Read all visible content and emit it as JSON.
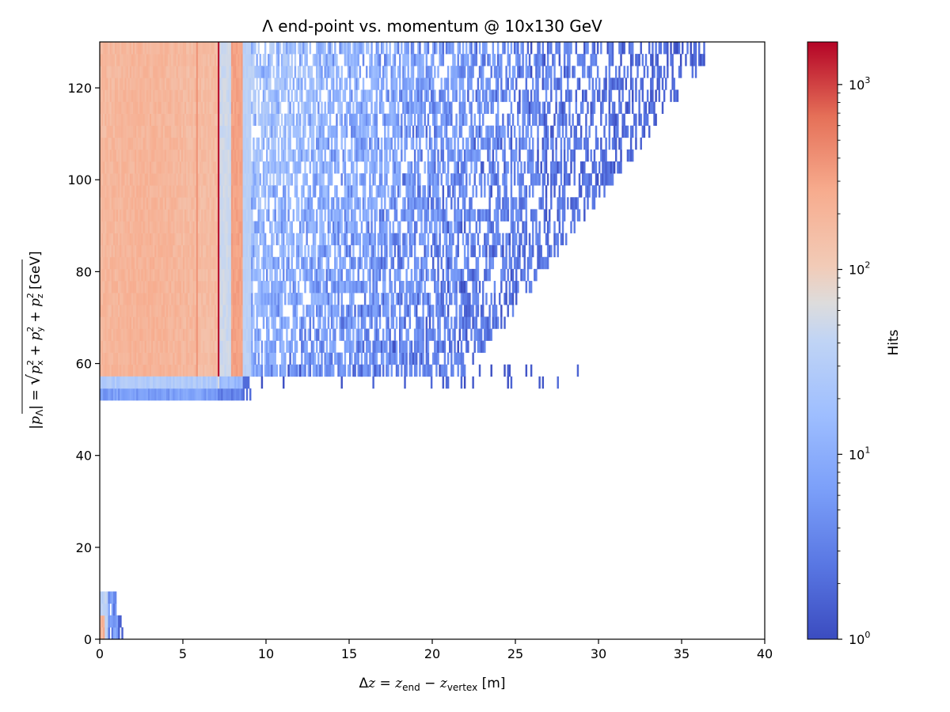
{
  "chart_data": {
    "type": "heatmap",
    "title": "Λ end-point vs. momentum @ 10x130 GeV",
    "xlabel": {
      "prefix": "Δ",
      "var": "z",
      "eq": " = ",
      "z": "z",
      "sub_end": "end",
      "minus": " − ",
      "sub_vertex": "vertex",
      "unit": " [m]"
    },
    "ylabel": {
      "open": "|",
      "p": "p",
      "sub_lambda": "Λ",
      "close": "| = ",
      "px": "p",
      "sub_x": "x",
      "py": "p",
      "sub_y": "y",
      "pz": "p",
      "sub_z": "z",
      "sup2": "2",
      "plus": " + ",
      "unit": " [GeV]"
    },
    "xlim": [
      0,
      40
    ],
    "ylim": [
      0,
      130
    ],
    "x_ticks": [
      0,
      5,
      10,
      15,
      20,
      25,
      30,
      35,
      40
    ],
    "y_ticks": [
      0,
      20,
      40,
      60,
      80,
      100,
      120
    ],
    "colorbar": {
      "label": "Hits",
      "scale": "log",
      "range": [
        1,
        1700
      ],
      "ticks": [
        {
          "base": "10",
          "exp": "0"
        },
        {
          "base": "10",
          "exp": "1"
        },
        {
          "base": "10",
          "exp": "2"
        },
        {
          "base": "10",
          "exp": "3"
        }
      ],
      "colormap": "coolwarm"
    },
    "features": {
      "main_band_momentum": [
        52,
        130
      ],
      "dense_region_z": [
        0,
        8.5
      ],
      "sparse_extent_z": 37,
      "peak_line_z": 7.0,
      "secondary_line_z": 5.8,
      "detector_edge_z": 36,
      "low_momentum_cluster": {
        "z": [
          0,
          2
        ],
        "p": [
          0,
          13
        ]
      }
    }
  }
}
